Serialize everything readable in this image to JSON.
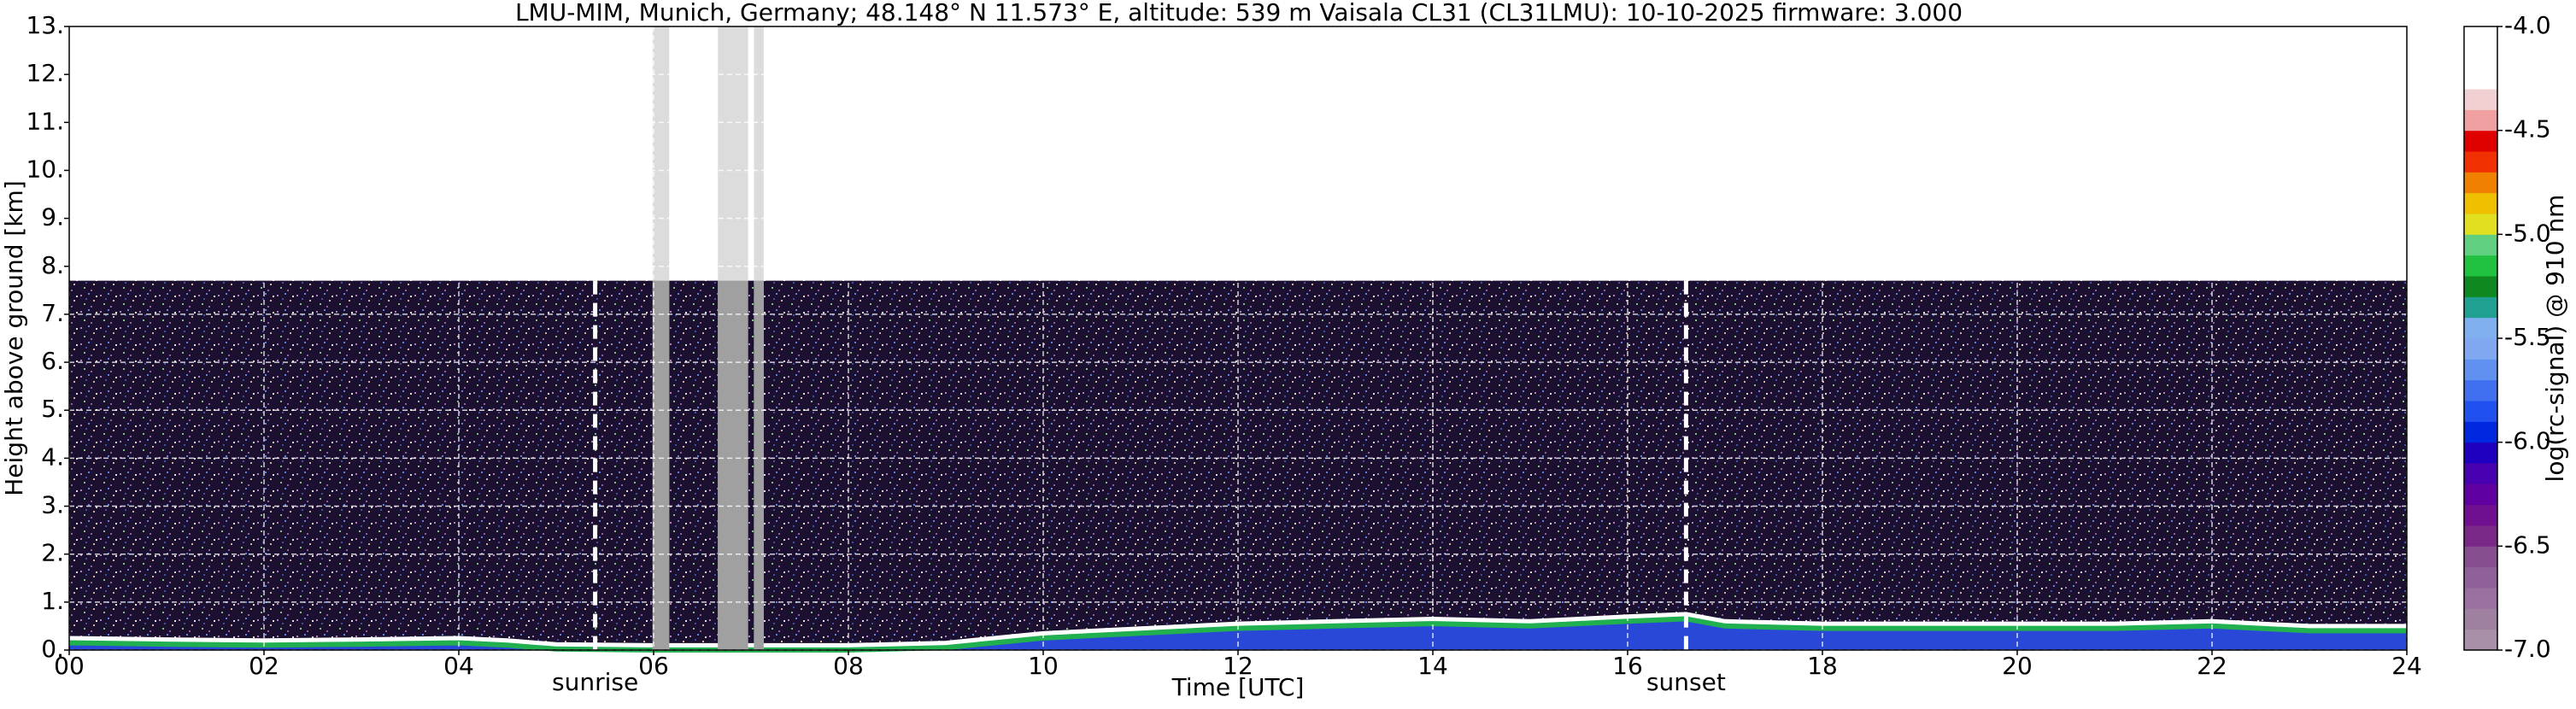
{
  "chart_data": {
    "type": "heatmap",
    "title": "LMU-MIM, Munich, Germany; 48.148° N 11.573° E, altitude: 539 m    Vaisala CL31 (CL31LMU): 10-10-2025    firmware: 3.000",
    "x_label": "Time [UTC]",
    "y_label": "Height above ground [km]",
    "xlim": [
      0,
      24
    ],
    "xticks": [
      {
        "value": 0,
        "label": "00"
      },
      {
        "value": 2,
        "label": "02"
      },
      {
        "value": 4,
        "label": "04"
      },
      {
        "value": 6,
        "label": "06"
      },
      {
        "value": 8,
        "label": "08"
      },
      {
        "value": 10,
        "label": "10"
      },
      {
        "value": 12,
        "label": "12"
      },
      {
        "value": 14,
        "label": "14"
      },
      {
        "value": 16,
        "label": "16"
      },
      {
        "value": 18,
        "label": "18"
      },
      {
        "value": 20,
        "label": "20"
      },
      {
        "value": 22,
        "label": "22"
      },
      {
        "value": 24,
        "label": "24"
      }
    ],
    "ylim": [
      0,
      13
    ],
    "yticks": [
      {
        "value": 0,
        "label": "0."
      },
      {
        "value": 1,
        "label": "1."
      },
      {
        "value": 2,
        "label": "2."
      },
      {
        "value": 3,
        "label": "3."
      },
      {
        "value": 4,
        "label": "4."
      },
      {
        "value": 5,
        "label": "5."
      },
      {
        "value": 6,
        "label": "6."
      },
      {
        "value": 7,
        "label": "7."
      },
      {
        "value": 8,
        "label": "8."
      },
      {
        "value": 9,
        "label": "9."
      },
      {
        "value": 10,
        "label": "10."
      },
      {
        "value": 11,
        "label": "11."
      },
      {
        "value": 12,
        "label": "12."
      },
      {
        "value": 13,
        "label": "13."
      }
    ],
    "grid": true,
    "signal_top": 7.7,
    "gaps": [
      [
        5.99,
        6.16
      ],
      [
        6.66,
        6.97
      ],
      [
        7.03,
        7.13
      ]
    ],
    "layer_top": {
      "x": [
        0,
        1,
        2,
        3,
        4,
        4.5,
        5,
        6,
        7,
        8,
        9,
        10,
        11,
        12,
        13,
        14,
        15,
        16,
        16.6,
        17,
        18,
        19,
        20,
        21,
        22,
        23,
        24
      ],
      "y": [
        0.25,
        0.22,
        0.2,
        0.22,
        0.25,
        0.2,
        0.12,
        0.1,
        0.1,
        0.1,
        0.15,
        0.35,
        0.45,
        0.55,
        0.6,
        0.65,
        0.6,
        0.7,
        0.75,
        0.6,
        0.55,
        0.55,
        0.55,
        0.55,
        0.6,
        0.5,
        0.5
      ]
    },
    "annotations": [
      {
        "text": "sunrise",
        "x": 5.4
      },
      {
        "text": "sunset",
        "x": 16.6
      }
    ],
    "colorbar": {
      "label": "log(rc-signal) @ 910 nm",
      "lim": [
        -7,
        -4
      ],
      "ticks": [
        {
          "value": -7,
          "label": "-7.0"
        },
        -6.5,
        {
          "value": -6,
          "label": "-6.0"
        },
        -5.5,
        {
          "value": -5,
          "label": "-5.0"
        },
        -4.5,
        {
          "value": -4,
          "label": "-4.0"
        }
      ],
      "colors": [
        "#a890a8",
        "#a080a0",
        "#9a70a0",
        "#906098",
        "#884c90",
        "#7a2888",
        "#6e1090",
        "#6000a0",
        "#4800b0",
        "#2000c0",
        "#0028e0",
        "#2050f0",
        "#4070f0",
        "#6090f0",
        "#80a8f0",
        "#80b0f0",
        "#20a090",
        "#108820",
        "#20c040",
        "#60d080",
        "#e0e020",
        "#f0c000",
        "#f08000",
        "#f03000",
        "#e00000",
        "#f0a0a0",
        "#f0d0d0",
        "#ffffff",
        "#ffffff",
        "#ffffff"
      ]
    }
  }
}
